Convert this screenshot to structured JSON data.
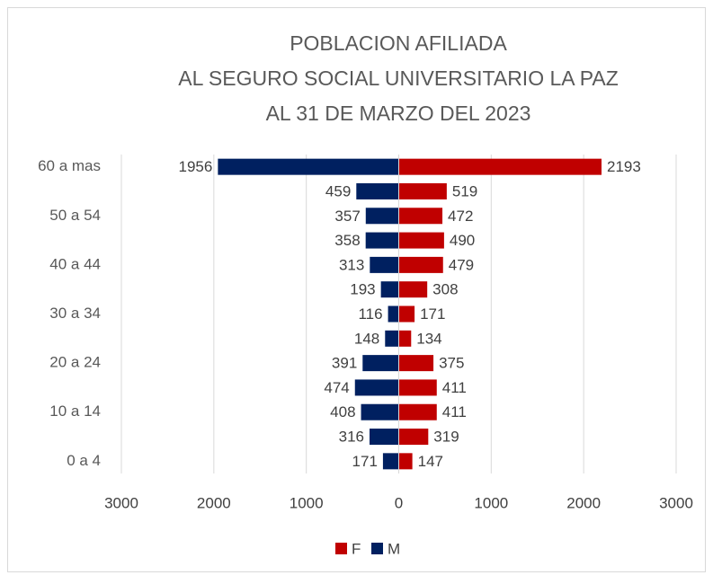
{
  "chart_data": {
    "type": "pyramid",
    "title": [
      "POBLACION AFILIADA",
      "AL SEGURO SOCIAL UNIVERSITARIO LA PAZ",
      "AL 31 DE MARZO DEL 2023"
    ],
    "categories": [
      "60 a mas",
      null,
      "50 a 54",
      null,
      "40 a 44",
      null,
      "30 a 34",
      null,
      "20 a 24",
      null,
      "10 a 14",
      null,
      "0 a 4"
    ],
    "series": [
      {
        "name": "F",
        "color": "#c00000",
        "values": [
          2193,
          519,
          472,
          490,
          479,
          308,
          171,
          134,
          375,
          411,
          411,
          319,
          147
        ]
      },
      {
        "name": "M",
        "color": "#002060",
        "values": [
          1956,
          459,
          357,
          358,
          313,
          193,
          116,
          148,
          391,
          474,
          408,
          316,
          171
        ]
      }
    ],
    "xlim": [
      -3000,
      3000
    ],
    "xticks": [
      {
        "value": -3000,
        "label": "3000"
      },
      {
        "value": -2000,
        "label": "2000"
      },
      {
        "value": -1000,
        "label": "1000"
      },
      0,
      1000,
      2000,
      3000
    ],
    "grid": true,
    "legend": "bottom"
  }
}
